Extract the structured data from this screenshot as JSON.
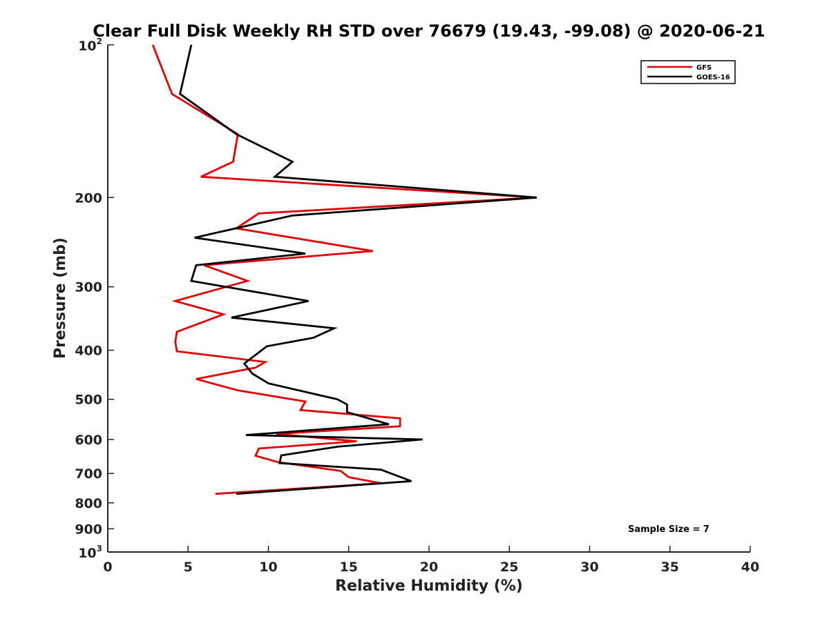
{
  "chart_data": {
    "type": "line",
    "title": "Clear Full Disk Weekly RH STD over 76679 (19.43, -99.08) @ 2020-06-21",
    "xlabel": "Relative Humidity (%)",
    "ylabel": "Pressure (mb)",
    "xlim": [
      0,
      40
    ],
    "ylim": [
      100,
      1000
    ],
    "y_scale": "log",
    "y_reversed": true,
    "grid": false,
    "legend_position": "top-right",
    "x_ticks": [
      0,
      5,
      10,
      15,
      20,
      25,
      30,
      35,
      40
    ],
    "x_tick_labels": [
      "0",
      "5",
      "10",
      "15",
      "20",
      "25",
      "30",
      "35",
      "40"
    ],
    "y_ticks": [
      200,
      300,
      400,
      500,
      600,
      700,
      800,
      900
    ],
    "y_tick_labels": [
      "200",
      "300",
      "400",
      "500",
      "600",
      "700",
      "800",
      "900"
    ],
    "y_top_label": {
      "base": "10",
      "exp": "2"
    },
    "y_bottom_label": {
      "base": "10",
      "exp": "3"
    },
    "annotation": "Sample Size = 7",
    "series": [
      {
        "name": "GFS",
        "color": "#e00000",
        "x": [
          2.8,
          4.0,
          8.1,
          7.8,
          5.8,
          26.7,
          9.4,
          8.0,
          16.5,
          6.0,
          8.7,
          4.2,
          7.2,
          4.3,
          4.2,
          4.3,
          9.8,
          9.2,
          5.5,
          8.1,
          12.3,
          12.0,
          18.2,
          18.2,
          10.5,
          15.5,
          9.4,
          9.2,
          10.6,
          14.5,
          15.0,
          17.0,
          6.7
        ],
        "y": [
          100,
          125,
          150,
          170,
          182,
          200,
          215,
          230,
          255,
          272,
          292,
          320,
          340,
          368,
          385,
          402,
          422,
          433,
          456,
          480,
          505,
          525,
          545,
          565,
          585,
          605,
          625,
          646,
          665,
          692,
          712,
          732,
          768
        ]
      },
      {
        "name": "GOES-16",
        "color": "#000000",
        "x": [
          5.2,
          4.5,
          8.0,
          11.5,
          10.4,
          26.7,
          11.5,
          5.4,
          12.3,
          5.5,
          5.2,
          12.5,
          7.7,
          14.1,
          12.8,
          9.9,
          8.5,
          9.0,
          10.0,
          14.3,
          14.9,
          14.9,
          17.5,
          8.6,
          19.6,
          14.3,
          10.8,
          10.7,
          17.0,
          18.9,
          8.0
        ],
        "y": [
          100,
          125,
          150,
          170,
          182,
          200,
          217,
          240,
          258,
          272,
          292,
          320,
          345,
          362,
          378,
          393,
          425,
          445,
          465,
          500,
          512,
          530,
          560,
          588,
          600,
          620,
          645,
          668,
          688,
          725,
          768
        ]
      }
    ]
  }
}
